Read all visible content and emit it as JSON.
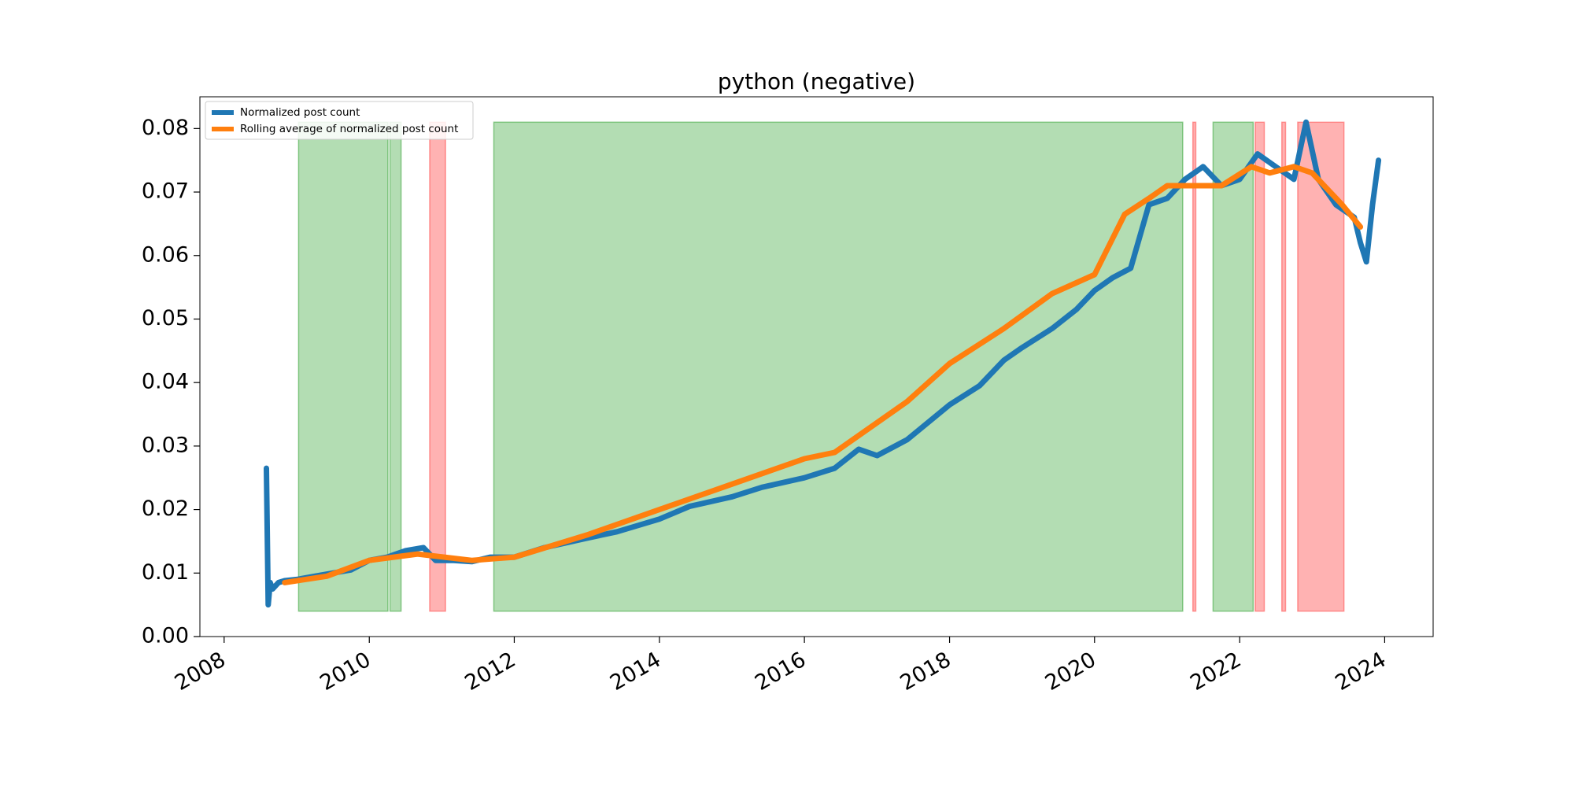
{
  "chart_data": {
    "type": "line",
    "title": "python (negative)",
    "xlabel": "",
    "ylabel": "",
    "x_axis": {
      "ticks": [
        "2008",
        "2010",
        "2012",
        "2014",
        "2016",
        "2018",
        "2020",
        "2022",
        "2024"
      ],
      "range": [
        "2007-09-01",
        "2024-09-01"
      ]
    },
    "y_axis": {
      "ticks": [
        "0.00",
        "0.01",
        "0.02",
        "0.03",
        "0.04",
        "0.05",
        "0.06",
        "0.07",
        "0.08"
      ],
      "range": [
        0.0,
        0.085
      ]
    },
    "grid": false,
    "legend": {
      "placement": "upper-left",
      "entries": [
        {
          "label": "Normalized post count",
          "color": "#1f77b4"
        },
        {
          "label": "Rolling average of normalized post count",
          "color": "#ff7f0e"
        }
      ]
    },
    "shaded_regions": {
      "y_range": [
        0.004,
        0.081
      ],
      "green_color": "#2ca02c",
      "red_color": "#ff0000",
      "green": [
        [
          "2009-01-10",
          "2010-04-05"
        ],
        [
          "2010-04-15",
          "2010-06-10"
        ],
        [
          "2011-09-20",
          "2021-03-20"
        ],
        [
          "2021-08-20",
          "2022-03-10"
        ]
      ],
      "red": [
        [
          "2010-11-01",
          "2011-01-20"
        ],
        [
          "2021-05-10",
          "2021-05-25"
        ],
        [
          "2022-03-20",
          "2022-05-05"
        ],
        [
          "2022-08-01",
          "2022-08-20"
        ],
        [
          "2022-10-20",
          "2023-06-10"
        ]
      ]
    },
    "series": [
      {
        "name": "Normalized post count",
        "color": "#1f77b4",
        "x": [
          "2008-08-01",
          "2008-08-10",
          "2008-08-20",
          "2008-09-01",
          "2008-10-01",
          "2008-11-01",
          "2009-01-01",
          "2009-04-01",
          "2009-07-01",
          "2009-10-01",
          "2010-01-01",
          "2010-04-01",
          "2010-07-01",
          "2010-10-01",
          "2010-12-01",
          "2011-03-01",
          "2011-06-01",
          "2011-09-01",
          "2012-01-01",
          "2012-06-01",
          "2013-01-01",
          "2013-06-01",
          "2014-01-01",
          "2014-06-01",
          "2015-01-01",
          "2015-06-01",
          "2016-01-01",
          "2016-06-01",
          "2016-10-01",
          "2017-01-01",
          "2017-06-01",
          "2018-01-01",
          "2018-06-01",
          "2018-10-01",
          "2019-01-01",
          "2019-06-01",
          "2019-10-01",
          "2020-01-01",
          "2020-04-01",
          "2020-07-01",
          "2020-10-01",
          "2021-01-01",
          "2021-04-01",
          "2021-07-01",
          "2021-10-01",
          "2022-01-01",
          "2022-04-01",
          "2022-07-01",
          "2022-10-01",
          "2022-12-01",
          "2023-02-01",
          "2023-05-01",
          "2023-08-01",
          "2023-09-01",
          "2023-10-01",
          "2023-11-01",
          "2023-12-01"
        ],
        "y": [
          0.0265,
          0.005,
          0.0085,
          0.0075,
          0.0085,
          0.0088,
          0.009,
          0.0095,
          0.01,
          0.0105,
          0.012,
          0.0125,
          0.0135,
          0.014,
          0.012,
          0.012,
          0.0118,
          0.0125,
          0.0125,
          0.014,
          0.0155,
          0.0165,
          0.0185,
          0.0205,
          0.022,
          0.0235,
          0.025,
          0.0265,
          0.0295,
          0.0285,
          0.031,
          0.0365,
          0.0395,
          0.0435,
          0.0455,
          0.0485,
          0.0515,
          0.0545,
          0.0565,
          0.058,
          0.068,
          0.069,
          0.072,
          0.074,
          0.071,
          0.072,
          0.076,
          0.074,
          0.072,
          0.081,
          0.072,
          0.068,
          0.066,
          0.062,
          0.059,
          0.068,
          0.075
        ]
      },
      {
        "name": "Rolling average of normalized post count",
        "color": "#ff7f0e",
        "x": [
          "2008-11-01",
          "2009-06-01",
          "2010-01-01",
          "2010-09-01",
          "2011-06-01",
          "2012-01-01",
          "2013-01-01",
          "2014-01-01",
          "2015-01-01",
          "2016-01-01",
          "2016-06-01",
          "2017-06-01",
          "2018-01-01",
          "2018-10-01",
          "2019-06-01",
          "2020-01-01",
          "2020-06-01",
          "2020-10-01",
          "2021-01-01",
          "2021-06-01",
          "2021-10-01",
          "2022-03-01",
          "2022-06-01",
          "2022-10-01",
          "2023-01-01",
          "2023-06-01",
          "2023-09-01"
        ],
        "y": [
          0.0085,
          0.0095,
          0.012,
          0.013,
          0.012,
          0.0125,
          0.016,
          0.02,
          0.024,
          0.028,
          0.029,
          0.037,
          0.043,
          0.0485,
          0.054,
          0.057,
          0.0665,
          0.069,
          0.071,
          0.071,
          0.071,
          0.074,
          0.073,
          0.074,
          0.073,
          0.068,
          0.0645
        ]
      }
    ]
  }
}
